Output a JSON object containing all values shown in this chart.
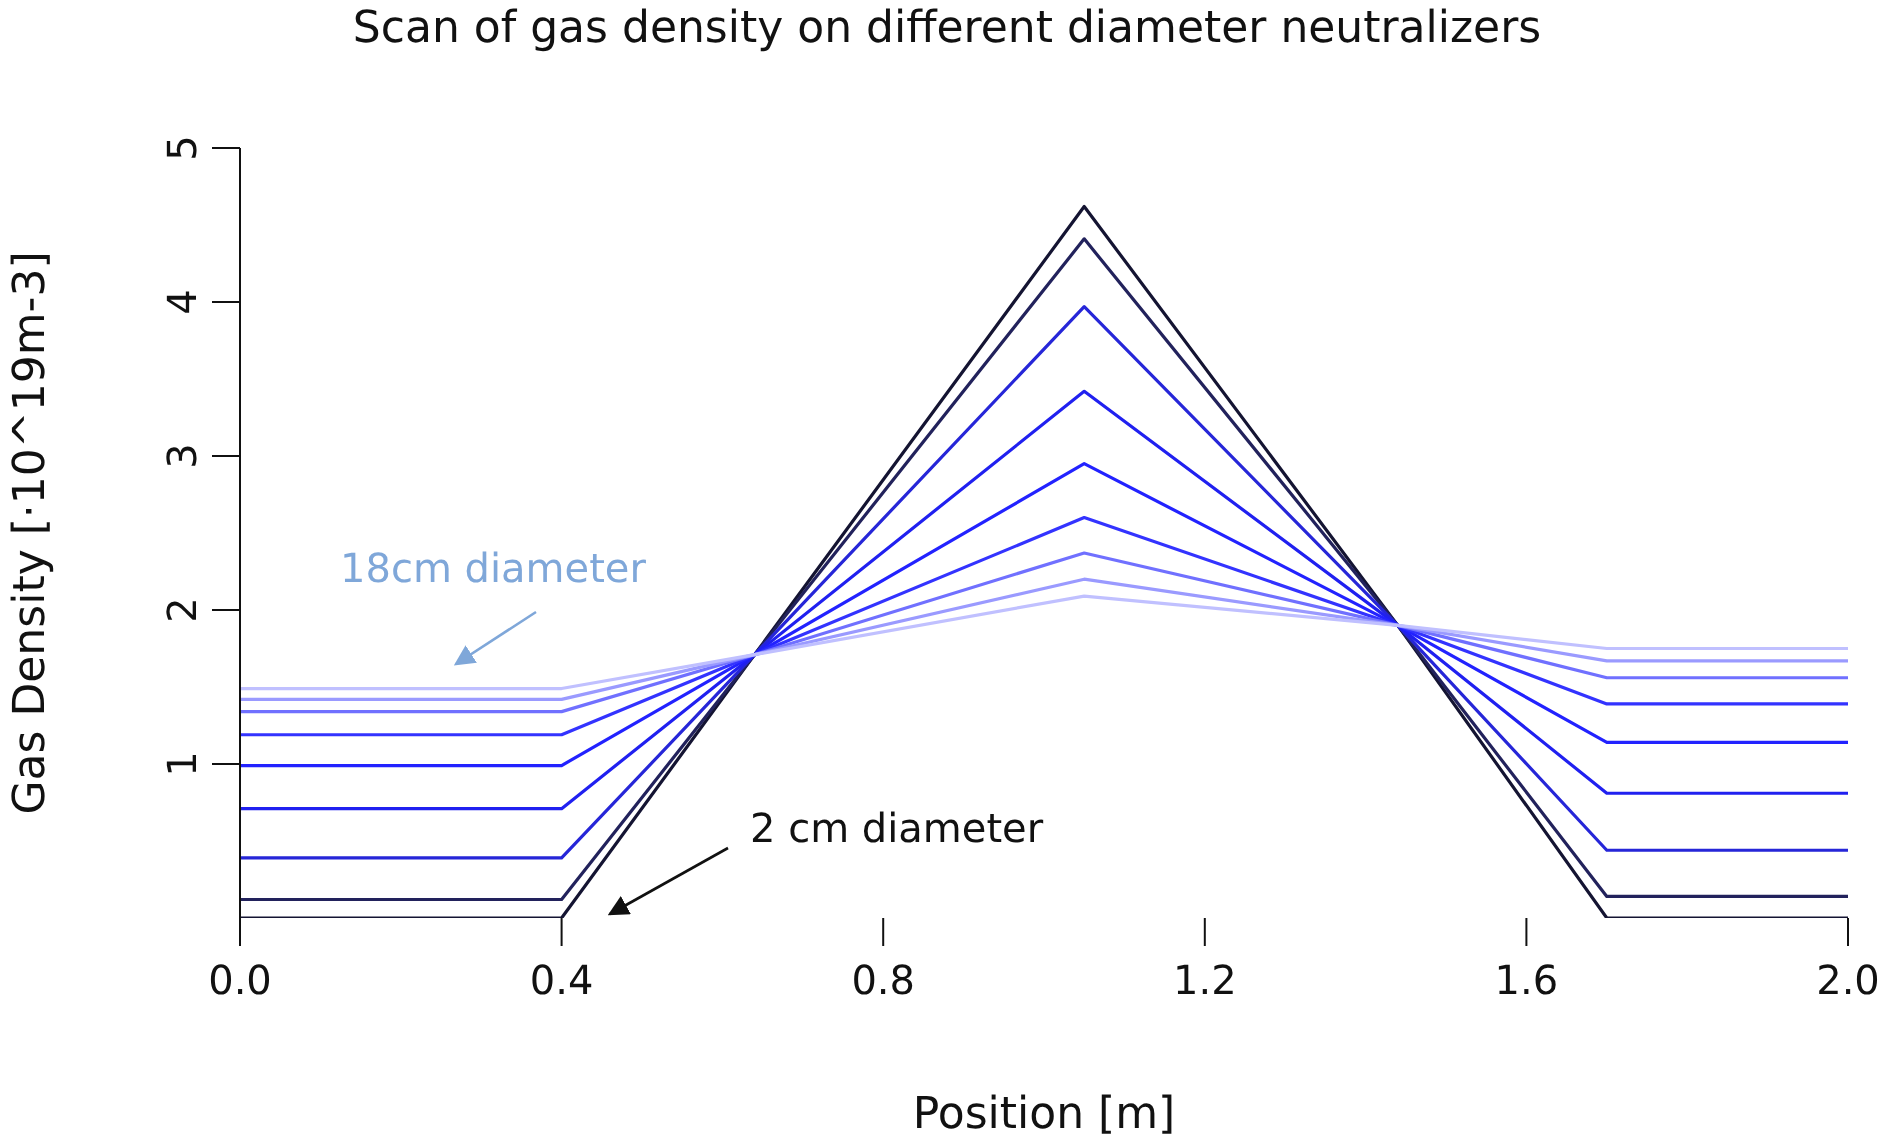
{
  "chart_data": {
    "type": "line",
    "title": "Scan of gas density on different diameter neutralizers",
    "xlabel": "Position [m]",
    "ylabel": "Gas Density [·10^19m-3]",
    "x": [
      0,
      0.4,
      0.64,
      1.05,
      1.44,
      1.7,
      2.0
    ],
    "series": [
      {
        "color": "#141432",
        "values": [
          0,
          0,
          1.71,
          4.62,
          1.9,
          0,
          0
        ]
      },
      {
        "color": "#22225c",
        "values": [
          0.12,
          0.12,
          1.71,
          4.41,
          1.9,
          0.14,
          0.14
        ]
      },
      {
        "color": "#2626d8",
        "values": [
          0.39,
          0.39,
          1.71,
          3.97,
          1.9,
          0.44,
          0.44
        ]
      },
      {
        "color": "#2020f0",
        "values": [
          0.71,
          0.71,
          1.71,
          3.42,
          1.9,
          0.81,
          0.81
        ]
      },
      {
        "color": "#2222ff",
        "values": [
          0.99,
          0.99,
          1.71,
          2.95,
          1.9,
          1.14,
          1.14
        ]
      },
      {
        "color": "#3333ff",
        "values": [
          1.19,
          1.19,
          1.71,
          2.6,
          1.9,
          1.39,
          1.39
        ]
      },
      {
        "color": "#7070ff",
        "values": [
          1.34,
          1.34,
          1.71,
          2.37,
          1.9,
          1.56,
          1.56
        ]
      },
      {
        "color": "#9a9aff",
        "values": [
          1.42,
          1.42,
          1.71,
          2.2,
          1.9,
          1.67,
          1.67
        ]
      },
      {
        "color": "#c0c0ff",
        "values": [
          1.49,
          1.49,
          1.71,
          2.09,
          1.9,
          1.75,
          1.75
        ]
      }
    ],
    "xlim": [
      0,
      2
    ],
    "xticks": [
      {
        "value": 0,
        "label": "0.0"
      },
      {
        "value": 0.4,
        "label": "0.4"
      },
      {
        "value": 0.8,
        "label": "0.8"
      },
      {
        "value": 1.2,
        "label": "1.2"
      },
      {
        "value": 1.6,
        "label": "1.6"
      },
      {
        "value": 2,
        "label": "2.0"
      }
    ],
    "ylim": [
      0,
      5
    ],
    "yticks": [
      1,
      2,
      3,
      4,
      5
    ],
    "annotations": [
      "18cm diameter",
      "2 cm diameter"
    ]
  }
}
